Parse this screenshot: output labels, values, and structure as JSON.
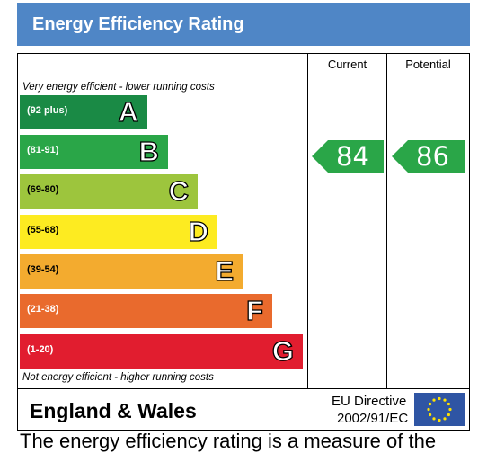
{
  "title": "Energy Efficiency Rating",
  "columns": {
    "current": "Current",
    "potential": "Potential"
  },
  "top_note": "Very energy efficient - lower running costs",
  "bottom_note": "Not energy efficient - higher running costs",
  "footer": {
    "region": "England & Wales",
    "directive_line1": "EU Directive",
    "directive_line2": "2002/91/EC"
  },
  "truncated_text": "The energy efficiency rating is a measure of the",
  "chart_data": {
    "type": "bar",
    "categories": [
      "A",
      "B",
      "C",
      "D",
      "E",
      "F",
      "G"
    ],
    "ranges": [
      "(92 plus)",
      "(81-91)",
      "(69-80)",
      "(55-68)",
      "(39-54)",
      "(21-38)",
      "(1-20)"
    ],
    "colors": [
      "#1a8a45",
      "#2aa648",
      "#9dc53d",
      "#fdeb21",
      "#f3ab2f",
      "#e96a2d",
      "#e11d2f"
    ],
    "current": {
      "value": 84,
      "band": "B",
      "color": "#2aa648"
    },
    "potential": {
      "value": 86,
      "band": "B",
      "color": "#2aa648"
    }
  }
}
